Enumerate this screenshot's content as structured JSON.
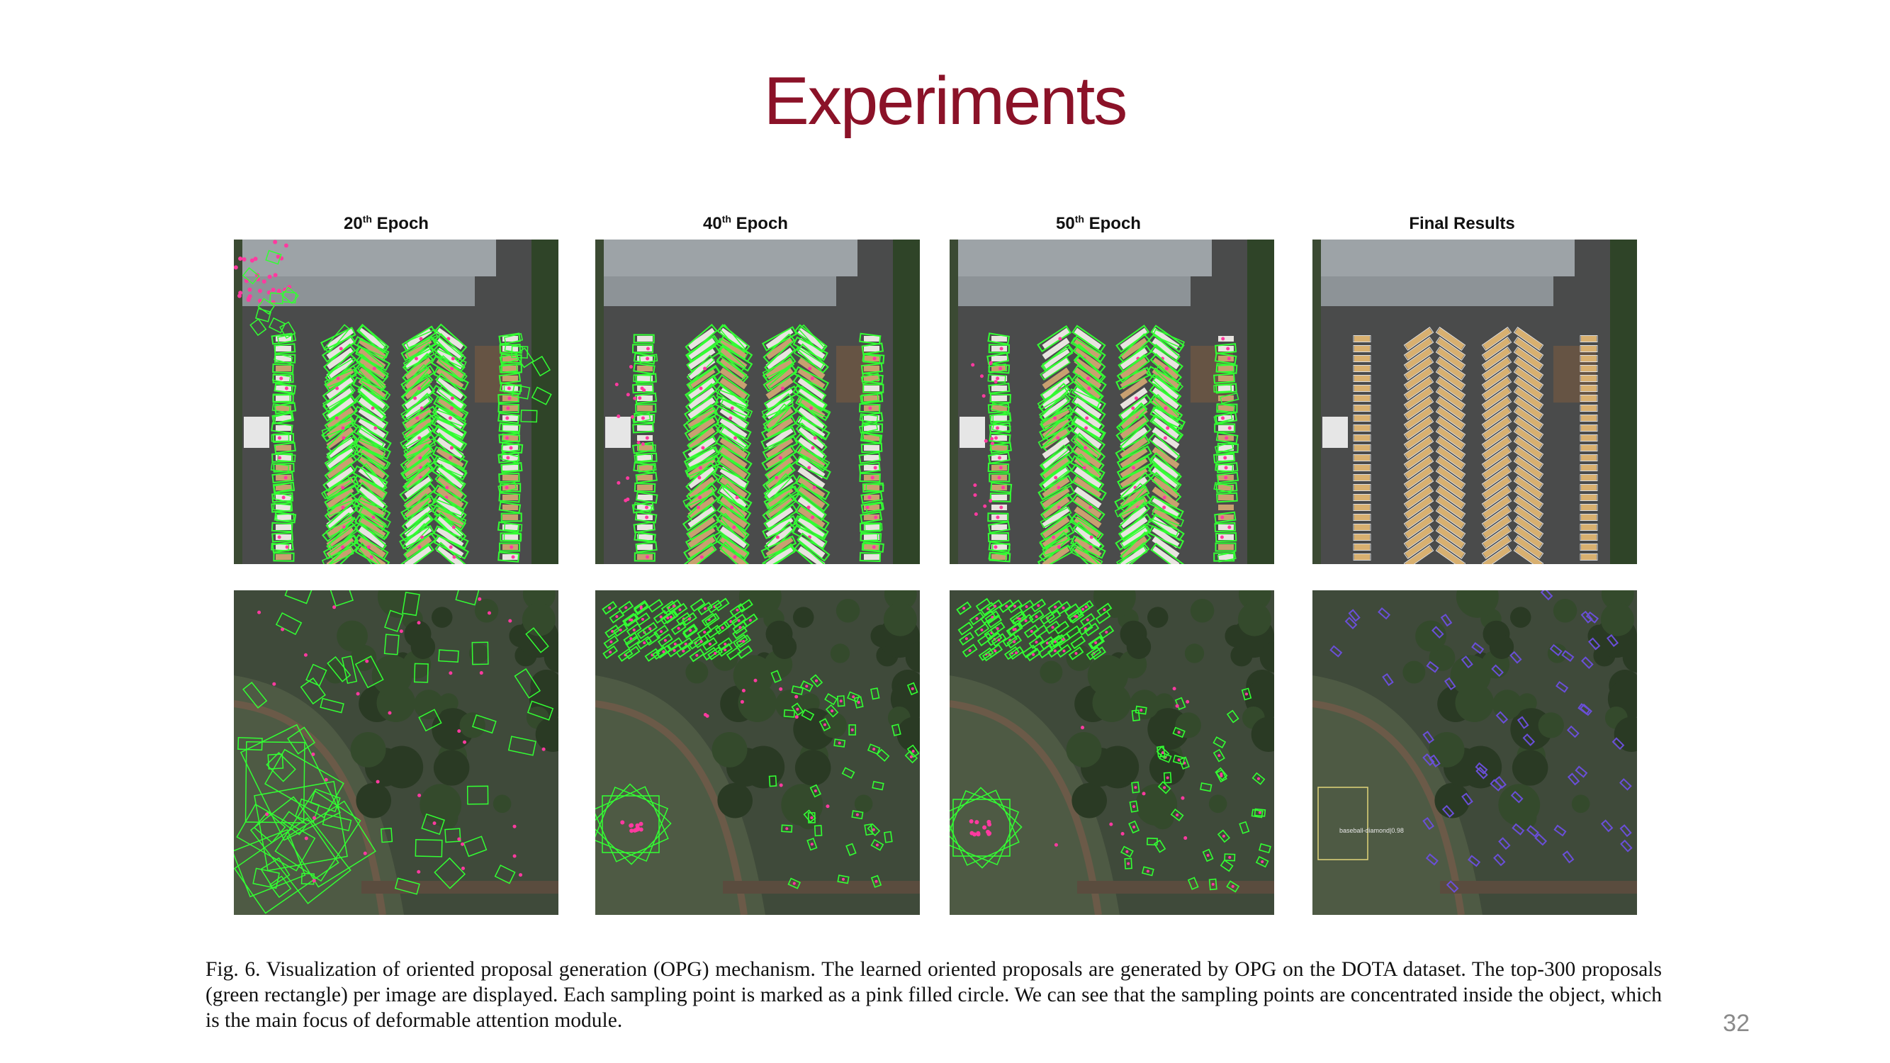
{
  "slide": {
    "title": "Experiments",
    "page_number": "32"
  },
  "columns": [
    {
      "num": "20",
      "sup": "th",
      "rest": " Epoch"
    },
    {
      "num": "40",
      "sup": "th",
      "rest": " Epoch"
    },
    {
      "num": "50",
      "sup": "th",
      "rest": " Epoch"
    },
    {
      "num": "",
      "sup": "",
      "rest": "Final Results"
    }
  ],
  "annotation_label": "baseball-diamond|0.98",
  "caption": "Fig. 6.  Visualization of oriented proposal generation (OPG) mechanism. The learned oriented proposals are generated by OPG on the DOTA dataset. The top-300 proposals (green rectangle) per image are displayed. Each sampling point is marked as a pink filled circle. We can see that the sampling points are concentrated inside the object, which is the main focus of deformable attention module.",
  "colors": {
    "title": "#8b1228",
    "proposal": "#33ff33",
    "sampling_point": "#ff3aa0",
    "final_box": "#6a4fd8",
    "page_number": "#8a8a8a"
  }
}
